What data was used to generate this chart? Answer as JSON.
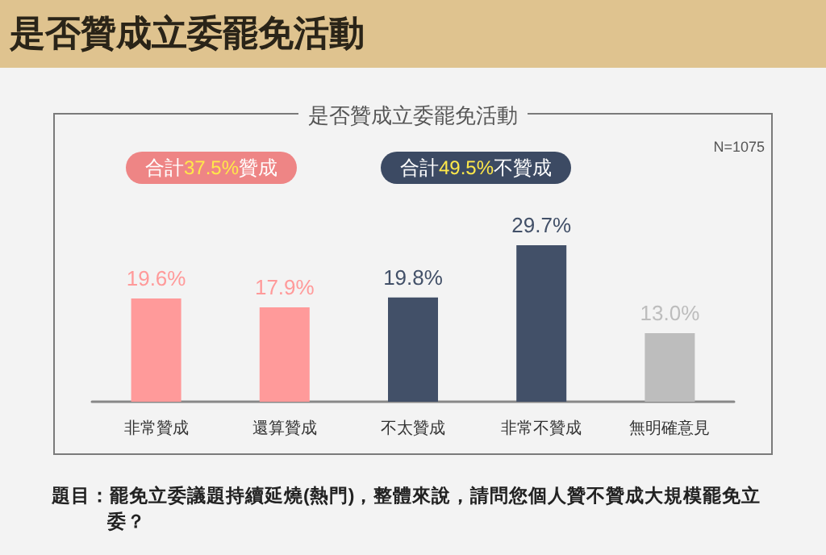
{
  "chart_data": {
    "type": "bar",
    "title": "是否贊成立委罷免活動",
    "subtitle": "是否贊成立委罷免活動",
    "categories": [
      "非常贊成",
      "還算贊成",
      "不太贊成",
      "非常不贊成",
      "無明確意見"
    ],
    "values": [
      19.6,
      17.9,
      19.8,
      29.7,
      13.0
    ],
    "colors": [
      "#ff9a9a",
      "#ff9a9a",
      "#425068",
      "#425068",
      "#bdbdbd"
    ],
    "value_labels": [
      "19.6%",
      "17.9%",
      "19.8%",
      "29.7%",
      "13.0%"
    ],
    "annotations": [
      "N=1075",
      "合計37.5%贊成",
      "合計49.5%不贊成",
      "題目：罷免立委議題持續延燒(熱門)，整體來說，請問您個人贊不贊成大規模罷免立委？"
    ]
  }
}
